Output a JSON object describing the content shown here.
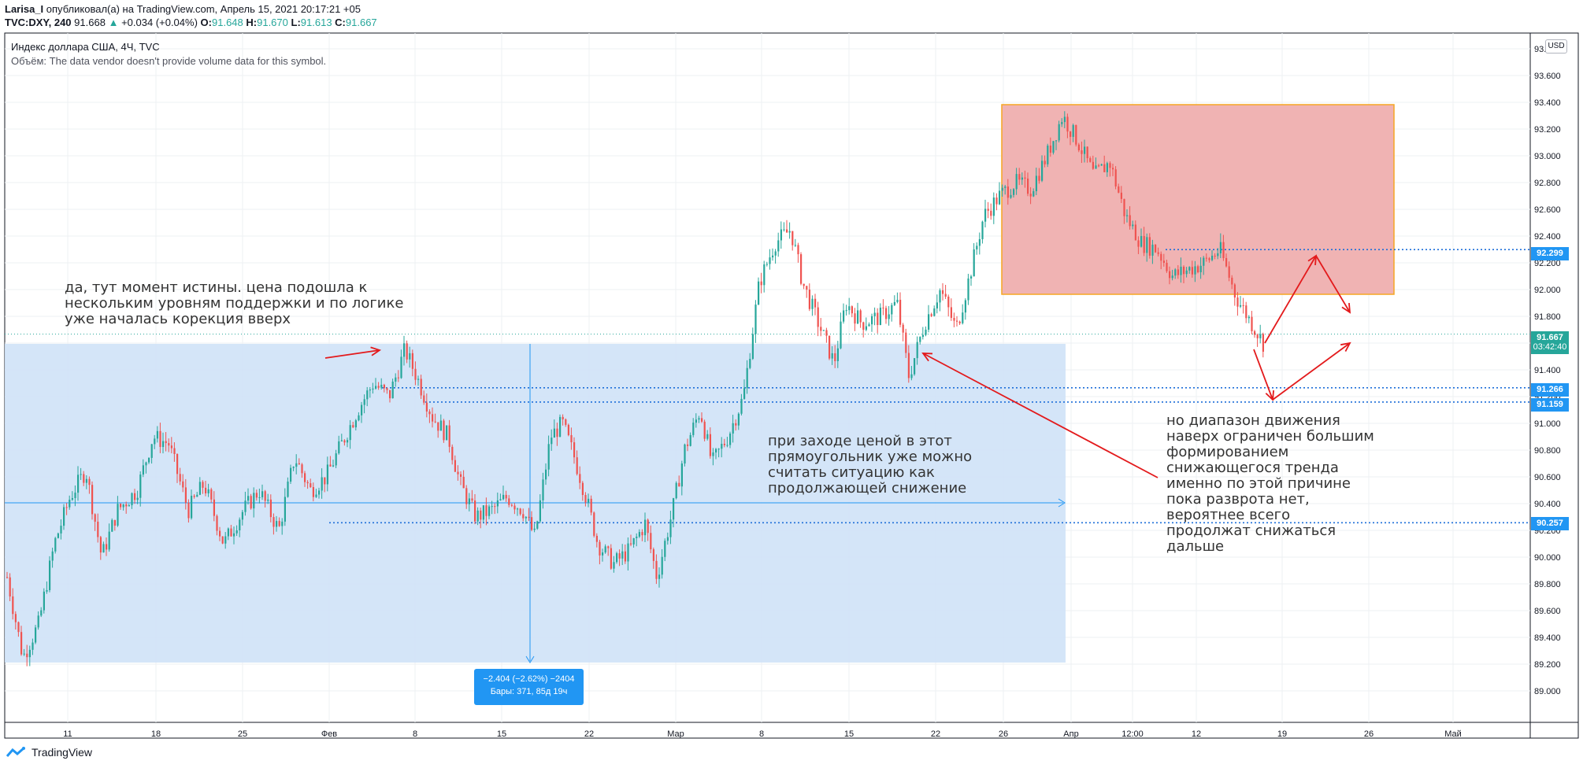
{
  "header": {
    "user": "Larisa_I",
    "published": "опубликовал(а) на TradingView.com, Апрель 15, 2021 20:17:21 +05",
    "symbol": "TVC:DXY, 240",
    "last": "91.668",
    "arrow": "▲",
    "change": "+0.034 (+0.04%)",
    "o_label": "O:",
    "o": "91.648",
    "h_label": "H:",
    "h": "91.670",
    "l_label": "L:",
    "l": "91.613",
    "c_label": "C:",
    "c": "91.667"
  },
  "legend": {
    "title": "Индекс доллара США, 4Ч, TVC",
    "volume": "Объём: The data vendor doesn't provide volume data for this symbol."
  },
  "currency_badge": "USD",
  "measure": {
    "line1": "−2.404 (−2.62%) −2404",
    "line2": "Бары: 371, 85д 19ч"
  },
  "annotations": {
    "top_left": "да, тут момент истины. цена подошла к\nнескольким уровням поддержки и по логике\nуже началась корекция вверх",
    "middle": "при заходе ценой в этот\nпрямоугольник уже можно\nсчитать ситуацию как\nпродолжающей снижение",
    "right": "но диапазон движения\nнаверх ограничен большим\nформированием\nснижающегося тренда\nименно по этой причине\nпока разврота нет,\nвероятнее всего\nпродолжат снижаться\nдальше"
  },
  "price_tags": [
    {
      "value": "92.299",
      "price": 92.299
    },
    {
      "value": "91.667",
      "sub": "03:42:40",
      "price": 91.667
    },
    {
      "value": "91.266",
      "price": 91.266
    },
    {
      "value": "91.159",
      "price": 91.159
    },
    {
      "value": "90.257",
      "price": 90.257
    }
  ],
  "footer": {
    "brand": "TradingView"
  },
  "colors": {
    "up": "#26a69a",
    "down": "#ef5350",
    "blue_zone": "#cfe2f7",
    "red_zone": "#f0b3b3",
    "red_zone_border": "#f5a623",
    "arrow": "#e31a1c",
    "level": "#1e6fd9",
    "tag": "#2196f3",
    "last_tag": "#26a69a"
  },
  "chart_data": {
    "type": "candlestick",
    "y_axis": {
      "ticks": [
        "89.000",
        "89.200",
        "89.400",
        "89.600",
        "89.800",
        "90.000",
        "90.200",
        "90.400",
        "90.600",
        "90.800",
        "91.000",
        "91.200",
        "91.400",
        "91.600",
        "91.800",
        "92.000",
        "92.200",
        "92.400",
        "92.600",
        "92.800",
        "93.000",
        "93.200",
        "93.400",
        "93.600",
        "93.800"
      ],
      "range": [
        88.8,
        93.9
      ]
    },
    "x_axis": {
      "ticks": [
        "11",
        "18",
        "25",
        "Фев",
        "8",
        "15",
        "22",
        "Мар",
        "8",
        "15",
        "22",
        "26",
        "Апр",
        "12:00",
        "12",
        "19",
        "26",
        "Май"
      ]
    },
    "path": [
      [
        0,
        89.85
      ],
      [
        20,
        89.25
      ],
      [
        40,
        89.5
      ],
      [
        60,
        90.1
      ],
      [
        80,
        90.45
      ],
      [
        100,
        90.65
      ],
      [
        120,
        90.0
      ],
      [
        140,
        90.35
      ],
      [
        165,
        90.5
      ],
      [
        185,
        90.9
      ],
      [
        205,
        90.85
      ],
      [
        230,
        90.35
      ],
      [
        250,
        90.55
      ],
      [
        275,
        90.1
      ],
      [
        300,
        90.35
      ],
      [
        320,
        90.5
      ],
      [
        345,
        90.2
      ],
      [
        365,
        90.75
      ],
      [
        385,
        90.5
      ],
      [
        405,
        90.6
      ],
      [
        425,
        90.85
      ],
      [
        445,
        91.1
      ],
      [
        465,
        91.3
      ],
      [
        485,
        91.2
      ],
      [
        505,
        91.55
      ],
      [
        520,
        91.35
      ],
      [
        540,
        91.05
      ],
      [
        560,
        90.9
      ],
      [
        575,
        90.55
      ],
      [
        595,
        90.3
      ],
      [
        615,
        90.35
      ],
      [
        635,
        90.45
      ],
      [
        655,
        90.35
      ],
      [
        670,
        90.15
      ],
      [
        690,
        90.9
      ],
      [
        705,
        91.0
      ],
      [
        720,
        90.75
      ],
      [
        735,
        90.45
      ],
      [
        750,
        90.1
      ],
      [
        770,
        89.95
      ],
      [
        790,
        90.05
      ],
      [
        810,
        90.25
      ],
      [
        825,
        89.85
      ],
      [
        845,
        90.35
      ],
      [
        860,
        90.8
      ],
      [
        880,
        91.1
      ],
      [
        895,
        90.7
      ],
      [
        915,
        90.9
      ],
      [
        935,
        91.2
      ],
      [
        955,
        92.05
      ],
      [
        975,
        92.35
      ],
      [
        995,
        92.45
      ],
      [
        1010,
        92.05
      ],
      [
        1030,
        91.75
      ],
      [
        1050,
        91.45
      ],
      [
        1065,
        91.9
      ],
      [
        1085,
        91.75
      ],
      [
        1110,
        91.8
      ],
      [
        1130,
        91.9
      ],
      [
        1145,
        91.35
      ],
      [
        1165,
        91.75
      ],
      [
        1185,
        92.0
      ],
      [
        1205,
        91.7
      ],
      [
        1220,
        92.05
      ],
      [
        1240,
        92.55
      ],
      [
        1260,
        92.7
      ],
      [
        1280,
        92.8
      ],
      [
        1300,
        92.75
      ],
      [
        1320,
        93.0
      ],
      [
        1340,
        93.3
      ],
      [
        1360,
        93.1
      ],
      [
        1380,
        92.85
      ],
      [
        1400,
        92.95
      ],
      [
        1420,
        92.55
      ],
      [
        1440,
        92.35
      ],
      [
        1460,
        92.3
      ],
      [
        1480,
        92.1
      ],
      [
        1500,
        92.15
      ],
      [
        1520,
        92.2
      ],
      [
        1540,
        92.3
      ],
      [
        1560,
        91.95
      ],
      [
        1580,
        91.75
      ],
      [
        1595,
        91.6
      ]
    ]
  }
}
